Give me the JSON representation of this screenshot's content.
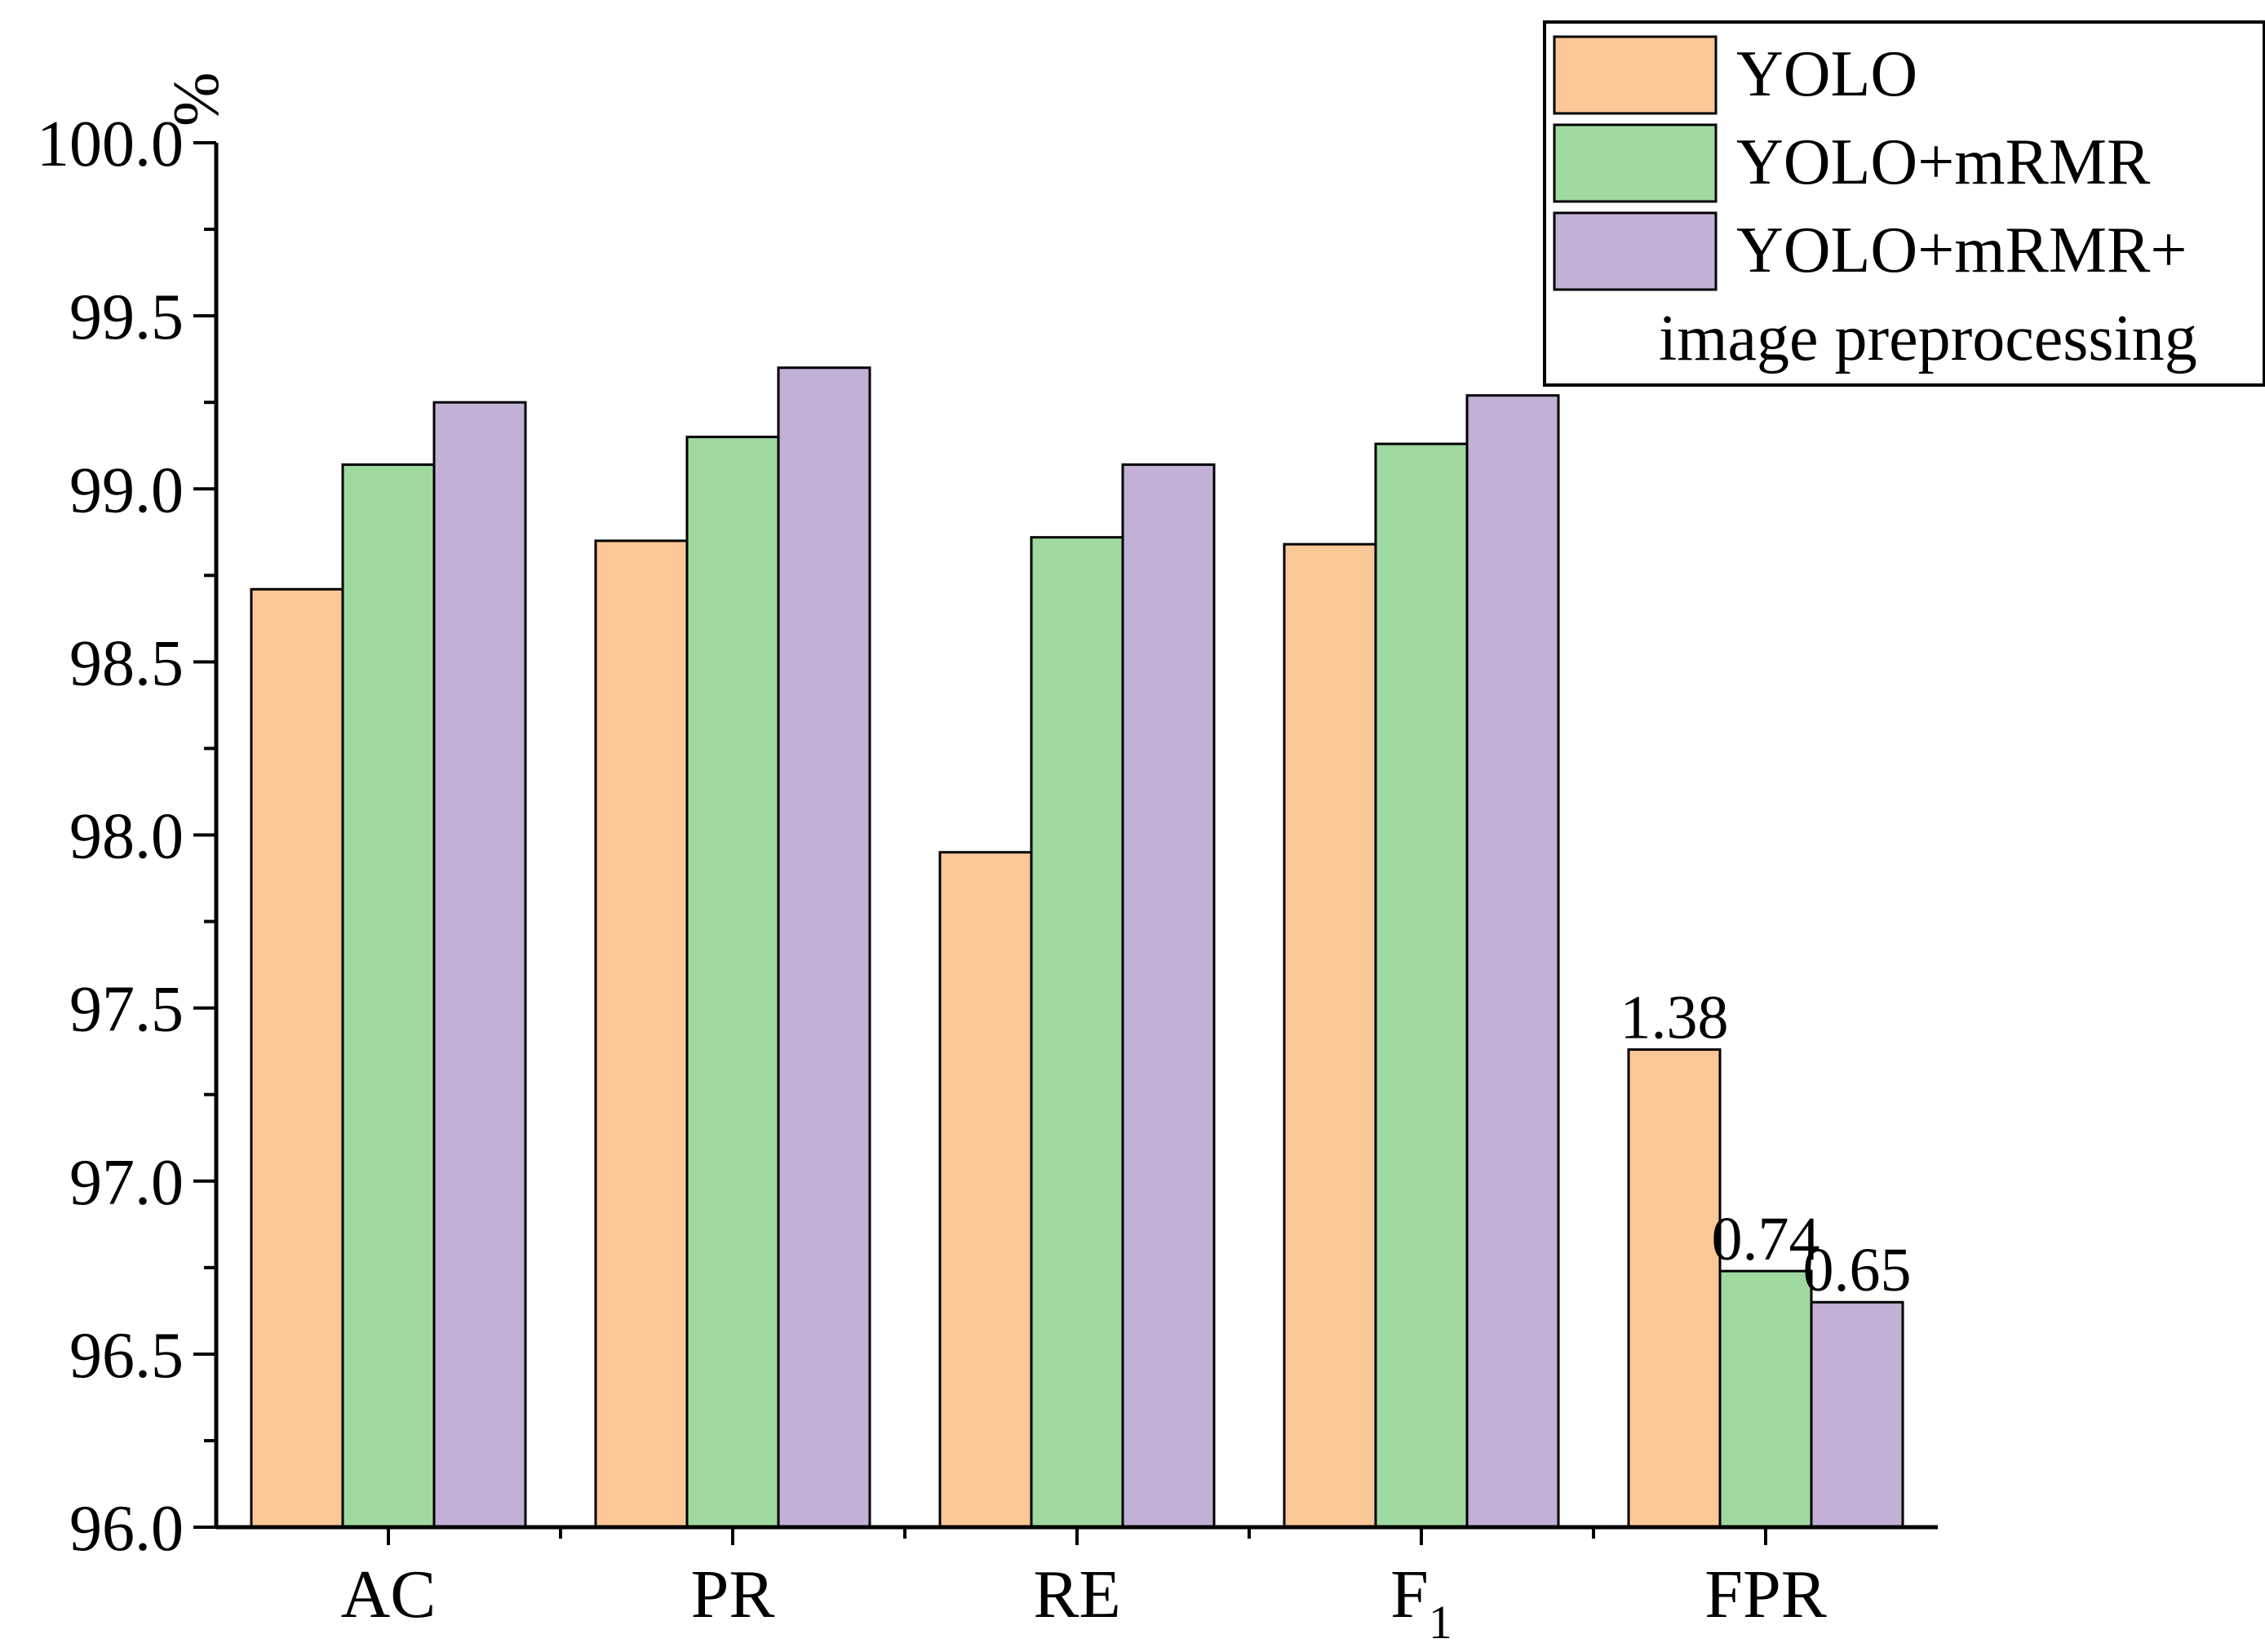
{
  "chart_data": {
    "type": "bar",
    "title": "",
    "xlabel": "",
    "ylabel": "%",
    "ylim": [
      96.0,
      100.0
    ],
    "yticks": [
      "96.0",
      "96.5",
      "97.0",
      "97.5",
      "98.0",
      "98.5",
      "99.0",
      "99.5",
      "100.0"
    ],
    "categories": [
      {
        "main": "AC",
        "sub": ""
      },
      {
        "main": "PR",
        "sub": ""
      },
      {
        "main": "RE",
        "sub": ""
      },
      {
        "main": "F",
        "sub": "1"
      },
      {
        "main": "FPR",
        "sub": ""
      }
    ],
    "series": [
      {
        "name": "YOLO",
        "color": "#fac796",
        "values": [
          98.71,
          98.85,
          97.95,
          98.84,
          97.38
        ]
      },
      {
        "name": "YOLO+mRMR",
        "color": "#9fd9a0",
        "values": [
          99.07,
          99.15,
          98.86,
          99.13,
          96.74
        ]
      },
      {
        "name": "YOLO+mRMR+ image preprocessing",
        "legend_lines": [
          "YOLO+mRMR+",
          "image preprocessing"
        ],
        "color": "#c2b0d6",
        "values": [
          99.25,
          99.35,
          99.07,
          99.27,
          96.65
        ]
      }
    ],
    "annotations": [
      {
        "category_index": 4,
        "series_index": 0,
        "text": "1.38"
      },
      {
        "category_index": 4,
        "series_index": 1,
        "text": "0.74"
      },
      {
        "category_index": 4,
        "series_index": 2,
        "text": "0.65"
      }
    ],
    "legend_position": "top-right",
    "grid": false
  }
}
